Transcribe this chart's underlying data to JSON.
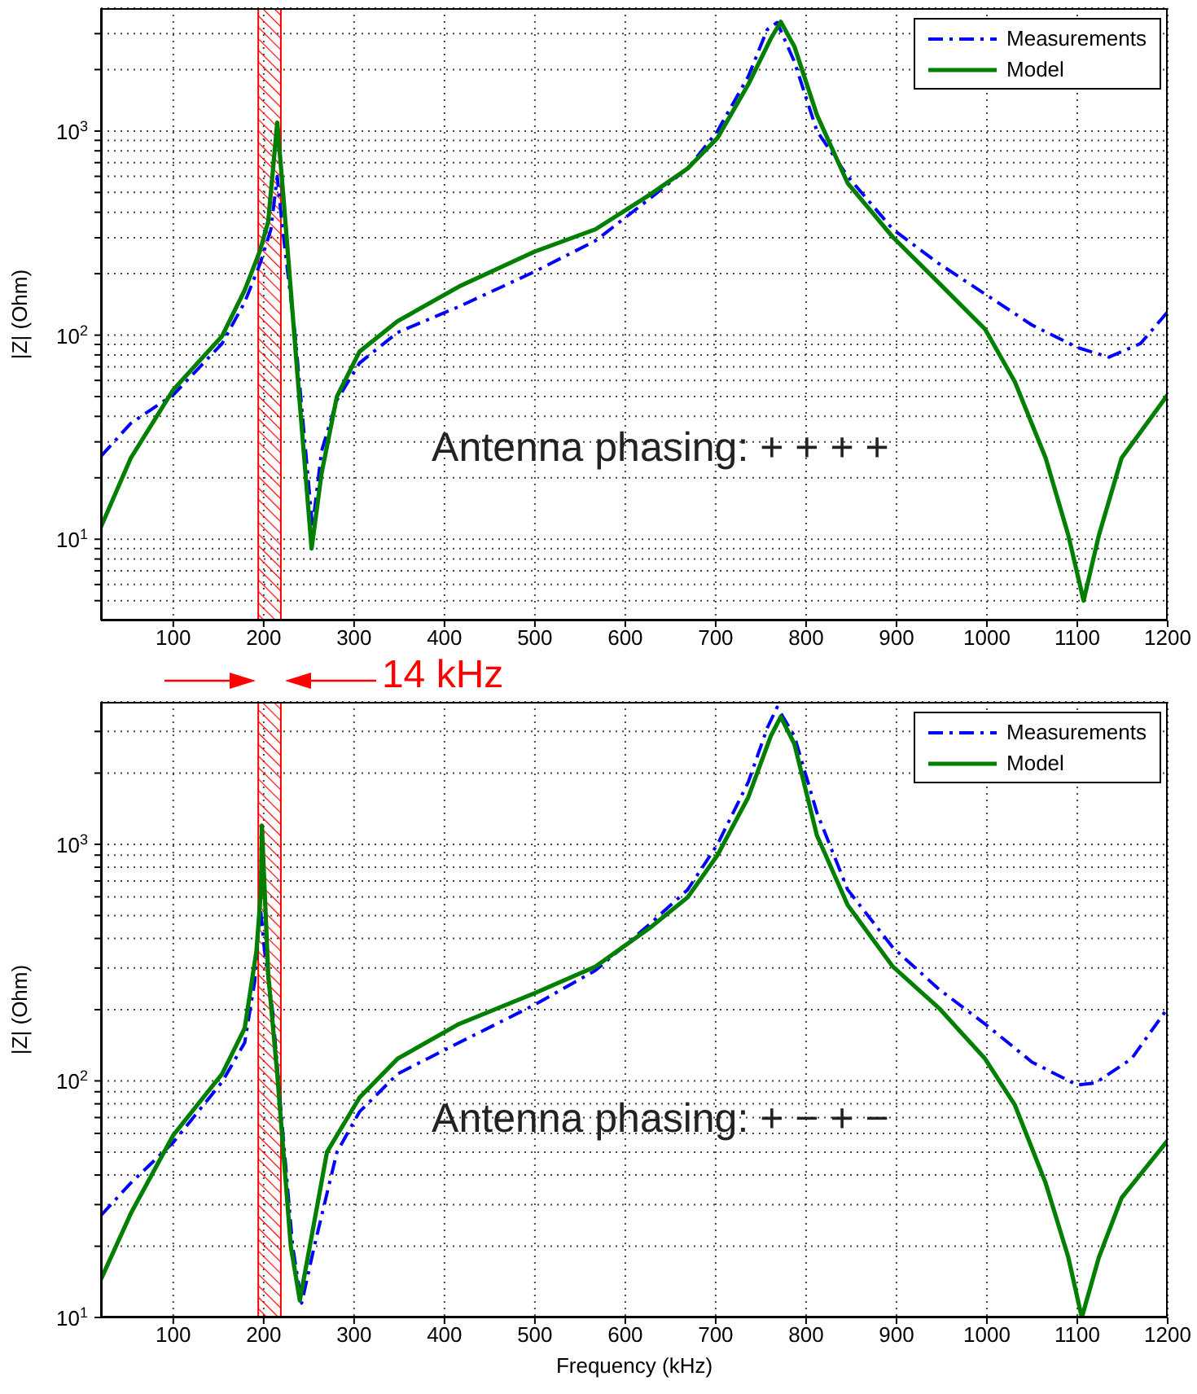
{
  "chart_data": [
    {
      "type": "line",
      "ylabel": "|Z| (Ohm)",
      "annotations": [
        "Antenna phasing: + + + +"
      ],
      "xlim": [
        20,
        1200
      ],
      "xticks": [
        100,
        200,
        300,
        400,
        500,
        600,
        700,
        800,
        900,
        1000,
        1100,
        1200
      ],
      "ylim": [
        4,
        4000
      ],
      "log": "y",
      "grid": true,
      "legend": "top right",
      "yticks": [
        {
          "value": 5,
          "label": null
        },
        {
          "value": 6,
          "label": null
        },
        {
          "value": 7,
          "label": null
        },
        {
          "value": 8,
          "label": null
        },
        {
          "value": 9,
          "label": null
        },
        {
          "value": 10,
          "label": "10$^{1}$"
        },
        {
          "value": 20,
          "label": null
        },
        {
          "value": 30,
          "label": null
        },
        {
          "value": 40,
          "label": null
        },
        {
          "value": 50,
          "label": null
        },
        {
          "value": 60,
          "label": null
        },
        {
          "value": 70,
          "label": null
        },
        {
          "value": 80,
          "label": null
        },
        {
          "value": 90,
          "label": null
        },
        {
          "value": 100,
          "label": "10$^{2}$"
        },
        {
          "value": 200,
          "label": null
        },
        {
          "value": 300,
          "label": null
        },
        {
          "value": 400,
          "label": null
        },
        {
          "value": 500,
          "label": null
        },
        {
          "value": 600,
          "label": null
        },
        {
          "value": 700,
          "label": null
        },
        {
          "value": 800,
          "label": null
        },
        {
          "value": 900,
          "label": null
        },
        {
          "value": 1000,
          "label": "10$^{3}$"
        },
        {
          "value": 2000,
          "label": null
        },
        {
          "value": 3000,
          "label": null
        }
      ],
      "bands": [
        {
          "axis": "x",
          "from": 194,
          "to": 219,
          "color": "#ff0000"
        }
      ],
      "series": [
        {
          "name": "Measurements",
          "color": "#0000ff",
          "line_style": "dashed",
          "x": [
            20,
            53,
            100,
            154,
            179,
            196,
            208,
            215,
            220,
            235,
            254,
            264,
            281,
            306,
            348,
            416,
            500,
            567,
            627,
            669,
            702,
            736,
            757,
            768,
            787,
            812,
            846,
            896,
            947,
            998,
            1050,
            1100,
            1135,
            1170,
            1200
          ],
          "values": [
            25.5,
            37,
            51,
            91,
            145,
            224,
            330,
            600,
            360,
            98,
            11.5,
            27,
            48,
            73,
            103,
            138,
            205,
            290,
            466,
            656,
            1000,
            1850,
            3140,
            3400,
            2190,
            1000,
            600,
            330,
            224,
            159,
            112,
            87,
            78,
            91,
            130
          ]
        },
        {
          "name": "Model",
          "color": "#007f00",
          "line_style": "solid",
          "x": [
            20,
            53,
            100,
            154,
            179,
            196,
            205,
            215,
            222,
            238,
            253,
            264,
            281,
            306,
            348,
            416,
            500,
            567,
            627,
            669,
            702,
            736,
            761,
            772,
            787,
            812,
            846,
            896,
            947,
            998,
            1031,
            1065,
            1090,
            1107,
            1124,
            1149,
            1200
          ],
          "values": [
            11.5,
            25,
            54,
            99,
            166,
            260,
            360,
            1100,
            465,
            59,
            9,
            21,
            50,
            83,
            117,
            173,
            257,
            330,
            487,
            656,
            925,
            1690,
            2840,
            3430,
            2600,
            1200,
            555,
            302,
            180,
            107,
            59,
            25,
            10.5,
            5,
            10.5,
            25,
            51
          ]
        }
      ]
    },
    {
      "type": "line",
      "xlabel": "Frequency (kHz)",
      "ylabel": "|Z| (Ohm)",
      "annotations": [
        "Antenna phasing: + − + −",
        "14 kHz"
      ],
      "xlim": [
        20,
        1200
      ],
      "xticks": [
        100,
        200,
        300,
        400,
        500,
        600,
        700,
        800,
        900,
        1000,
        1100,
        1200
      ],
      "ylim": [
        10,
        4000
      ],
      "log": "y",
      "grid": true,
      "legend": "top right",
      "yticks": [
        {
          "value": 10,
          "label": "10$^{1}$"
        },
        {
          "value": 20,
          "label": null
        },
        {
          "value": 30,
          "label": null
        },
        {
          "value": 40,
          "label": null
        },
        {
          "value": 50,
          "label": null
        },
        {
          "value": 60,
          "label": null
        },
        {
          "value": 70,
          "label": null
        },
        {
          "value": 80,
          "label": null
        },
        {
          "value": 90,
          "label": null
        },
        {
          "value": 100,
          "label": "10$^{2}$"
        },
        {
          "value": 200,
          "label": null
        },
        {
          "value": 300,
          "label": null
        },
        {
          "value": 400,
          "label": null
        },
        {
          "value": 500,
          "label": null
        },
        {
          "value": 600,
          "label": null
        },
        {
          "value": 700,
          "label": null
        },
        {
          "value": 800,
          "label": null
        },
        {
          "value": 900,
          "label": null
        },
        {
          "value": 1000,
          "label": "10$^{3}$"
        },
        {
          "value": 2000,
          "label": null
        },
        {
          "value": 3000,
          "label": null
        }
      ],
      "bands": [
        {
          "axis": "x",
          "from": 194,
          "to": 219,
          "color": "#ff0000"
        }
      ],
      "series": [
        {
          "name": "Measurements",
          "color": "#0000ff",
          "line_style": "dashed",
          "x": [
            20,
            53,
            100,
            154,
            179,
            190,
            196,
            201,
            210,
            220,
            232,
            242,
            256,
            281,
            306,
            348,
            416,
            500,
            567,
            627,
            669,
            702,
            736,
            757,
            768,
            787,
            812,
            846,
            896,
            947,
            998,
            1050,
            1100,
            1120,
            1160,
            1200
          ],
          "values": [
            27,
            37,
            55,
            99,
            145,
            262,
            555,
            354,
            195,
            68,
            20,
            11.5,
            20,
            50,
            74,
            107,
            145,
            210,
            293,
            460,
            643,
            1000,
            1830,
            3100,
            3800,
            2870,
            1360,
            643,
            366,
            244,
            174,
            120,
            96,
            98,
            124,
            203
          ]
        },
        {
          "name": "Model",
          "color": "#007f00",
          "line_style": "solid",
          "x": [
            20,
            53,
            100,
            154,
            179,
            192,
            197,
            198,
            205,
            215,
            230,
            240,
            253,
            270,
            306,
            348,
            416,
            500,
            567,
            627,
            669,
            702,
            736,
            761,
            772,
            787,
            812,
            846,
            896,
            947,
            998,
            1031,
            1065,
            1090,
            1105,
            1124,
            1149,
            1200
          ],
          "values": [
            14.5,
            27.5,
            59,
            107,
            167,
            354,
            640,
            1200,
            283,
            107,
            20,
            11.8,
            22,
            50,
            85,
            124,
            174,
            235,
            304,
            443,
            597,
            900,
            1580,
            2870,
            3460,
            2660,
            1090,
            554,
            304,
            203,
            124,
            79,
            37,
            18,
            10,
            18,
            32,
            56
          ]
        }
      ]
    }
  ]
}
